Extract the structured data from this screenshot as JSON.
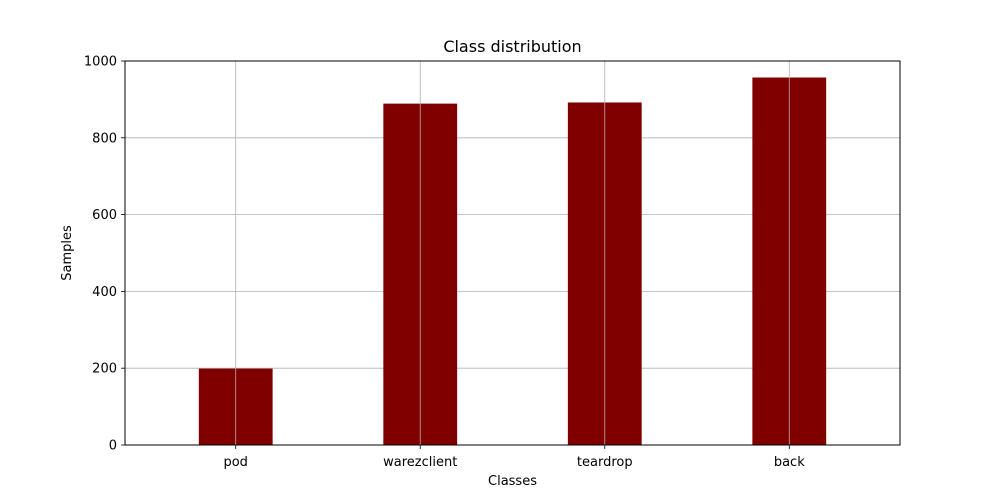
{
  "chart_data": {
    "type": "bar",
    "title": "Class distribution",
    "xlabel": "Classes",
    "ylabel": "Samples",
    "categories": [
      "pod",
      "warezclient",
      "teardrop",
      "back"
    ],
    "values": [
      199,
      889,
      892,
      957
    ],
    "ylim": [
      0,
      1000
    ],
    "yticks": [
      0,
      200,
      400,
      600,
      800,
      1000
    ],
    "grid": true,
    "bar_color": "#800000"
  }
}
